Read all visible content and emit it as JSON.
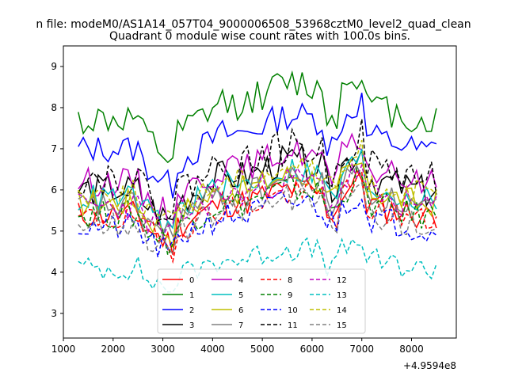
{
  "chart_data": {
    "type": "line",
    "suptitle": "n file: modeM0/AS1A14_057T04_9000006508_53968cztM0_level2_quad_clean",
    "title": "Quadrant 0 module wise count rates with 100.0s bins.",
    "xlabel": "",
    "ylabel": "",
    "x_offset_label": "+4.9594e8",
    "xlim": [
      1000,
      8900
    ],
    "ylim": [
      2.4,
      9.5
    ],
    "xticks": [
      1000,
      2000,
      3000,
      4000,
      5000,
      6000,
      7000,
      8000
    ],
    "yticks": [
      3,
      4,
      5,
      6,
      7,
      8,
      9
    ],
    "x_start": 1300,
    "x_step": 100,
    "x_end_points": 73,
    "legend_position": "lower-center",
    "series": [
      {
        "name": "0",
        "color": "#ff0000",
        "dash": "solid",
        "base": 5.4,
        "amp": 0.35,
        "seed": 11
      },
      {
        "name": "1",
        "color": "#008000",
        "dash": "solid",
        "base": 7.7,
        "amp": 0.4,
        "seed": 12
      },
      {
        "name": "2",
        "color": "#0000ff",
        "dash": "solid",
        "base": 7.0,
        "amp": 0.35,
        "seed": 13
      },
      {
        "name": "3",
        "color": "#000000",
        "dash": "solid",
        "base": 6.0,
        "amp": 0.4,
        "seed": 14
      },
      {
        "name": "4",
        "color": "#bf00bf",
        "dash": "solid",
        "base": 6.2,
        "amp": 0.35,
        "seed": 15
      },
      {
        "name": "5",
        "color": "#00bfbf",
        "dash": "solid",
        "base": 5.8,
        "amp": 0.35,
        "seed": 16
      },
      {
        "name": "6",
        "color": "#bfbf00",
        "dash": "solid",
        "base": 5.7,
        "amp": 0.35,
        "seed": 17
      },
      {
        "name": "7",
        "color": "#808080",
        "dash": "solid",
        "base": 5.6,
        "amp": 0.35,
        "seed": 18
      },
      {
        "name": "8",
        "color": "#ff0000",
        "dash": "dashed",
        "base": 5.3,
        "amp": 0.35,
        "seed": 19
      },
      {
        "name": "9",
        "color": "#008000",
        "dash": "dashed",
        "base": 5.4,
        "amp": 0.35,
        "seed": 20
      },
      {
        "name": "10",
        "color": "#0000ff",
        "dash": "dashed",
        "base": 5.1,
        "amp": 0.35,
        "seed": 21
      },
      {
        "name": "11",
        "color": "#000000",
        "dash": "dashed",
        "base": 6.3,
        "amp": 0.45,
        "seed": 22
      },
      {
        "name": "12",
        "color": "#bf00bf",
        "dash": "dashed",
        "base": 5.6,
        "amp": 0.35,
        "seed": 23
      },
      {
        "name": "13",
        "color": "#00bfbf",
        "dash": "dashed",
        "base": 4.1,
        "amp": 0.3,
        "seed": 24
      },
      {
        "name": "14",
        "color": "#bfbf00",
        "dash": "dashed",
        "base": 5.9,
        "amp": 0.35,
        "seed": 25
      },
      {
        "name": "15",
        "color": "#808080",
        "dash": "dashed",
        "base": 5.2,
        "amp": 0.35,
        "seed": 26
      }
    ]
  }
}
